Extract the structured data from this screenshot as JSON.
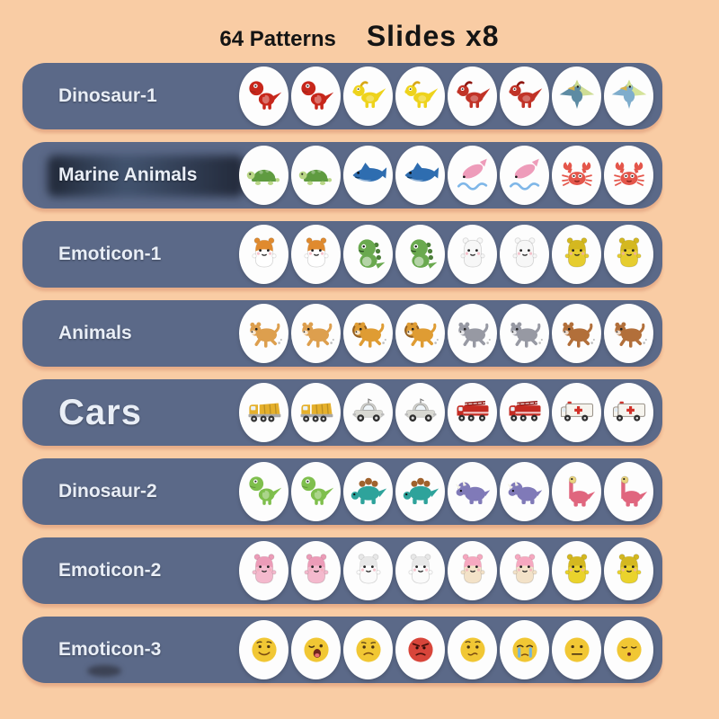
{
  "header": {
    "patterns_label": "64 Patterns",
    "slides_label": "Slides x8"
  },
  "colors": {
    "background": "#f9cca4",
    "row_pill": "#5b6988",
    "row_label_text": "#e9eef6",
    "circle": "#fdfdfd",
    "title_text": "#141414"
  },
  "rows": [
    {
      "label": "Dinosaur-1",
      "icons": [
        {
          "name": "red-tyrannosaurus-1",
          "shape": "trex",
          "color": "#c7271b"
        },
        {
          "name": "red-tyrannosaurus-2",
          "shape": "trex",
          "color": "#c7271b"
        },
        {
          "name": "yellow-dinosaur-1",
          "shape": "raptor",
          "color": "#eed31c",
          "accent": "#d8a818"
        },
        {
          "name": "yellow-dinosaur-2",
          "shape": "raptor",
          "color": "#eed31c",
          "accent": "#d8a818"
        },
        {
          "name": "red-raptor-1",
          "shape": "raptor",
          "color": "#c13327",
          "accent": "#8f1711"
        },
        {
          "name": "red-raptor-2",
          "shape": "raptor",
          "color": "#c13327",
          "accent": "#8f1711"
        },
        {
          "name": "pterodactyl-1",
          "shape": "ptero",
          "color": "#5d8ba3",
          "accent": "#c9d98a"
        },
        {
          "name": "pterodactyl-2",
          "shape": "ptero",
          "color": "#7fadcc",
          "accent": "#cfe08e"
        }
      ]
    },
    {
      "label": "Marine Animals",
      "watermark": true,
      "icons": [
        {
          "name": "green-turtle-1",
          "shape": "turtle",
          "color": "#5f9b40",
          "accent": "#b9d687"
        },
        {
          "name": "green-turtle-2",
          "shape": "turtle",
          "color": "#5f9b40",
          "accent": "#b9d687"
        },
        {
          "name": "blue-shark-1",
          "shape": "shark",
          "color": "#2e6db0"
        },
        {
          "name": "blue-shark-2",
          "shape": "shark",
          "color": "#2e6db0"
        },
        {
          "name": "pink-dolphin-1",
          "shape": "dolphin",
          "color": "#ee9cba",
          "accent": "#7fb7e8"
        },
        {
          "name": "pink-dolphin-2",
          "shape": "dolphin",
          "color": "#ee9cba",
          "accent": "#7fb7e8"
        },
        {
          "name": "red-crab-1",
          "shape": "crab",
          "color": "#e4564b"
        },
        {
          "name": "red-crab-2",
          "shape": "crab",
          "color": "#e4564b"
        }
      ]
    },
    {
      "label": "Emoticon-1",
      "icons": [
        {
          "name": "hamster-1",
          "shape": "blob",
          "color": "#ffffff",
          "accent": "#e08a2e"
        },
        {
          "name": "hamster-2",
          "shape": "blob",
          "color": "#ffffff",
          "accent": "#e08a2e"
        },
        {
          "name": "baby-dino-1",
          "shape": "chibidino",
          "color": "#6aa94f",
          "accent": "#4d7f3a"
        },
        {
          "name": "baby-dino-2",
          "shape": "chibidino",
          "color": "#6aa94f",
          "accent": "#4d7f3a"
        },
        {
          "name": "ghost-blob-1",
          "shape": "blob",
          "color": "#f7f7f7"
        },
        {
          "name": "ghost-blob-2",
          "shape": "blob",
          "color": "#f7f7f7"
        },
        {
          "name": "yellow-duckling-1",
          "shape": "blob",
          "color": "#e6cd2f",
          "accent": "#d4b820"
        },
        {
          "name": "yellow-duckling-2",
          "shape": "blob",
          "color": "#e6cd2f",
          "accent": "#d4b820"
        }
      ]
    },
    {
      "label": "Animals",
      "icons": [
        {
          "name": "tan-puppy-1",
          "shape": "quad",
          "color": "#dd9f4e"
        },
        {
          "name": "tan-puppy-2",
          "shape": "quad",
          "color": "#dd9f4e"
        },
        {
          "name": "lion-1",
          "shape": "quad",
          "color": "#df9c33",
          "accent": "#96601f"
        },
        {
          "name": "lion-2",
          "shape": "quad",
          "color": "#df9c33",
          "accent": "#96601f"
        },
        {
          "name": "gray-cat-1",
          "shape": "quad",
          "color": "#9799a3"
        },
        {
          "name": "gray-cat-2",
          "shape": "quad",
          "color": "#9799a3"
        },
        {
          "name": "brown-dog-1",
          "shape": "quad",
          "color": "#b26f3a"
        },
        {
          "name": "brown-dog-2",
          "shape": "quad",
          "color": "#b26f3a"
        }
      ]
    },
    {
      "label": "Cars",
      "large_label": true,
      "icons": [
        {
          "name": "dump-truck-1",
          "shape": "truck",
          "color": "#e5b02c"
        },
        {
          "name": "dump-truck-2",
          "shape": "truck",
          "color": "#e5b02c"
        },
        {
          "name": "gray-car-1",
          "shape": "car",
          "color": "#d8d8d2"
        },
        {
          "name": "gray-car-2",
          "shape": "car",
          "color": "#d8d8d2"
        },
        {
          "name": "fire-truck-1",
          "shape": "firetruck",
          "color": "#c42b22"
        },
        {
          "name": "fire-truck-2",
          "shape": "firetruck",
          "color": "#c42b22"
        },
        {
          "name": "ambulance-1",
          "shape": "ambulance",
          "color": "#f6f4ee",
          "accent": "#d03028"
        },
        {
          "name": "ambulance-2",
          "shape": "ambulance",
          "color": "#f6f4ee",
          "accent": "#d03028"
        }
      ]
    },
    {
      "label": "Dinosaur-2",
      "icons": [
        {
          "name": "green-trex-1",
          "shape": "trex",
          "color": "#7fbf4d"
        },
        {
          "name": "green-trex-2",
          "shape": "trex",
          "color": "#7fbf4d"
        },
        {
          "name": "stegosaurus-1",
          "shape": "stego",
          "color": "#2ea39b",
          "accent": "#a0622d"
        },
        {
          "name": "stegosaurus-2",
          "shape": "stego",
          "color": "#2ea39b",
          "accent": "#a0622d"
        },
        {
          "name": "triceratops-1",
          "shape": "trice",
          "color": "#807ab8"
        },
        {
          "name": "triceratops-2",
          "shape": "trice",
          "color": "#807ab8"
        },
        {
          "name": "brontosaurus-1",
          "shape": "bronto",
          "color": "#e0667e",
          "accent": "#e8d37e"
        },
        {
          "name": "brontosaurus-2",
          "shape": "bronto",
          "color": "#e0667e",
          "accent": "#e8d37e"
        }
      ]
    },
    {
      "label": "Emoticon-2",
      "icons": [
        {
          "name": "pink-pig-1",
          "shape": "blob",
          "color": "#f4b9cd",
          "accent": "#ec9cb8"
        },
        {
          "name": "pink-pig-2",
          "shape": "blob",
          "color": "#f4b9cd",
          "accent": "#ec9cb8"
        },
        {
          "name": "white-cat-1",
          "shape": "blob",
          "color": "#fbfbfb",
          "accent": "#e8e8e8"
        },
        {
          "name": "white-cat-2",
          "shape": "blob",
          "color": "#fbfbfb",
          "accent": "#e8e8e8"
        },
        {
          "name": "heart-cat-1",
          "shape": "blob",
          "color": "#f3e2c8",
          "accent": "#f6a8c0"
        },
        {
          "name": "heart-cat-2",
          "shape": "blob",
          "color": "#f3e2c8",
          "accent": "#f6a8c0"
        },
        {
          "name": "yellow-duck-1",
          "shape": "blob",
          "color": "#ead32c",
          "accent": "#d4b820"
        },
        {
          "name": "yellow-duck-2",
          "shape": "blob",
          "color": "#ead32c",
          "accent": "#d4b820"
        }
      ]
    },
    {
      "label": "Emoticon-3",
      "smudge": true,
      "icons": [
        {
          "name": "smiley-face",
          "shape": "face-smile",
          "color": "#f1c734"
        },
        {
          "name": "surprised-face",
          "shape": "face-open",
          "color": "#f1c734"
        },
        {
          "name": "sad-face",
          "shape": "face-sad",
          "color": "#f1c734"
        },
        {
          "name": "angry-face",
          "shape": "face-angry",
          "color": "#d8453a"
        },
        {
          "name": "worried-face",
          "shape": "face-worried",
          "color": "#f1c734"
        },
        {
          "name": "crying-face",
          "shape": "face-cry",
          "color": "#f1c734",
          "accent": "#74b6dc"
        },
        {
          "name": "neutral-face",
          "shape": "face-flat",
          "color": "#f1c734"
        },
        {
          "name": "sleepy-face",
          "shape": "face-sleepy",
          "color": "#f1c734"
        }
      ]
    }
  ]
}
